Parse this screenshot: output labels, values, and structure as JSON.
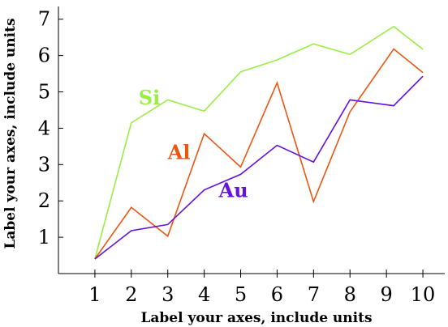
{
  "chart_data": {
    "type": "line",
    "xlabel": "Label your axes, include units",
    "ylabel": "Label your axes, include units",
    "xlim": [
      0,
      10.6
    ],
    "ylim": [
      0,
      7.35
    ],
    "x_ticks": [
      1,
      2,
      3,
      4,
      5,
      6,
      7,
      8,
      9,
      10
    ],
    "y_ticks": [
      1,
      2,
      3,
      4,
      5,
      6,
      7
    ],
    "grid": false,
    "legend": "none",
    "series": [
      {
        "name": "Si",
        "color": "#99ee44",
        "x": [
          1,
          2,
          3,
          4,
          5,
          6,
          7,
          8,
          9.2,
          10
        ],
        "y": [
          0.4,
          4.15,
          4.78,
          4.47,
          5.55,
          5.88,
          6.32,
          6.03,
          6.8,
          6.17
        ]
      },
      {
        "name": "Al",
        "color": "#ee5511",
        "x": [
          1,
          2,
          3,
          4,
          5,
          6,
          7,
          8,
          9.2,
          10
        ],
        "y": [
          0.4,
          1.82,
          1.03,
          3.85,
          2.93,
          5.25,
          1.98,
          4.45,
          6.18,
          5.53
        ]
      },
      {
        "name": "Au",
        "color": "#6611dd",
        "x": [
          1,
          2,
          3,
          4,
          5,
          6,
          7,
          8,
          9.2,
          10
        ],
        "y": [
          0.4,
          1.18,
          1.35,
          2.3,
          2.73,
          3.53,
          3.07,
          4.78,
          4.62,
          5.43
        ]
      }
    ]
  }
}
